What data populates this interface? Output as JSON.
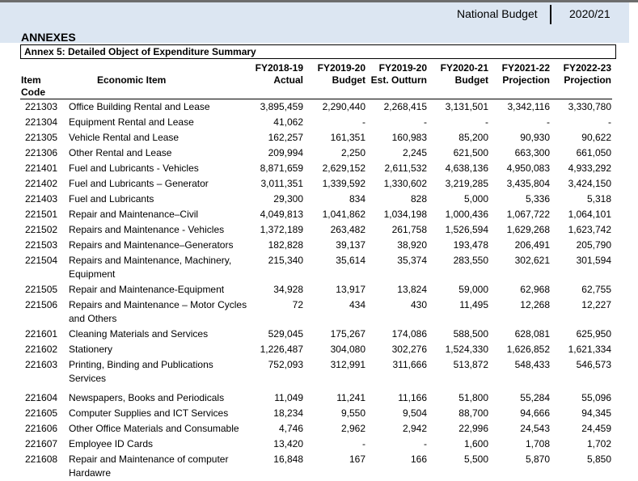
{
  "header": {
    "title": "National Budget",
    "year": "2020/21"
  },
  "section": "ANNEXES",
  "annex_title": "Annex 5: Detailed Object of Expenditure Summary",
  "table": {
    "columns": [
      [
        "",
        "Item Code"
      ],
      [
        "",
        "Economic Item"
      ],
      [
        "FY2018-19",
        "Actual"
      ],
      [
        "FY2019-20",
        "Budget"
      ],
      [
        "FY2019-20",
        "Est. Outturn"
      ],
      [
        "FY2020-21",
        "Budget"
      ],
      [
        "FY2021-22",
        "Projection"
      ],
      [
        "FY2022-23",
        "Projection"
      ]
    ],
    "rows": [
      [
        "221303",
        "Office Building Rental and Lease",
        "3,895,459",
        "2,290,440",
        "2,268,415",
        "3,131,501",
        "3,342,116",
        "3,330,780"
      ],
      [
        "221304",
        "Equipment Rental and Lease",
        "41,062",
        "-",
        "-",
        "-",
        "-",
        "-"
      ],
      [
        "221305",
        "Vehicle Rental and Lease",
        "162,257",
        "161,351",
        "160,983",
        "85,200",
        "90,930",
        "90,622"
      ],
      [
        "221306",
        "Other Rental and Lease",
        "209,994",
        "2,250",
        "2,245",
        "621,500",
        "663,300",
        "661,050"
      ],
      [
        "221401",
        "Fuel and Lubricants - Vehicles",
        "8,871,659",
        "2,629,152",
        "2,611,532",
        "4,638,136",
        "4,950,083",
        "4,933,292"
      ],
      [
        "221402",
        "Fuel and Lubricants – Generator",
        "3,011,351",
        "1,339,592",
        "1,330,602",
        "3,219,285",
        "3,435,804",
        "3,424,150"
      ],
      [
        "221403",
        "Fuel and Lubricants",
        "29,300",
        "834",
        "828",
        "5,000",
        "5,336",
        "5,318"
      ],
      [
        "221501",
        "Repair and Maintenance–Civil",
        "4,049,813",
        "1,041,862",
        "1,034,198",
        "1,000,436",
        "1,067,722",
        "1,064,101"
      ],
      [
        "221502",
        "Repairs and Maintenance - Vehicles",
        "1,372,189",
        "263,482",
        "261,758",
        "1,526,594",
        "1,629,268",
        "1,623,742"
      ],
      [
        "221503",
        "Repairs and Maintenance–Generators",
        "182,828",
        "39,137",
        "38,920",
        "193,478",
        "206,491",
        "205,790"
      ],
      [
        "221504",
        "Repairs and Maintenance, Machinery, Equipment",
        "215,340",
        "35,614",
        "35,374",
        "283,550",
        "302,621",
        "301,594"
      ],
      [
        "221505",
        "Repair and Maintenance-Equipment",
        "34,928",
        "13,917",
        "13,824",
        "59,000",
        "62,968",
        "62,755"
      ],
      [
        "221506",
        "Repairs and Maintenance – Motor Cycles and Others",
        "72",
        "434",
        "430",
        "11,495",
        "12,268",
        "12,227"
      ],
      [
        "221601",
        "Cleaning Materials and Services",
        "529,045",
        "175,267",
        "174,086",
        "588,500",
        "628,081",
        "625,950"
      ],
      [
        "221602",
        "Stationery",
        "1,226,487",
        "304,080",
        "302,276",
        "1,524,330",
        "1,626,852",
        "1,621,334"
      ],
      [
        "221603",
        "Printing, Binding and Publications Services",
        "752,093",
        "312,991",
        "311,666",
        "513,872",
        "548,433",
        "546,573"
      ],
      [
        "221604",
        "Newspapers, Books and Periodicals",
        "11,049",
        "11,241",
        "11,166",
        "51,800",
        "55,284",
        "55,096"
      ],
      [
        "221605",
        "Computer Supplies and ICT Services",
        "18,234",
        "9,550",
        "9,504",
        "88,700",
        "94,666",
        "94,345"
      ],
      [
        "221606",
        "Other Office Materials and Consumable",
        "4,746",
        "2,962",
        "2,942",
        "22,996",
        "24,543",
        "24,459"
      ],
      [
        "221607",
        "Employee ID Cards",
        "13,420",
        "-",
        "-",
        "1,600",
        "1,708",
        "1,702"
      ],
      [
        "221608",
        "Repair and Maintenance of computer Hardawre",
        "16,848",
        "167",
        "166",
        "5,500",
        "5,870",
        "5,850"
      ]
    ]
  }
}
